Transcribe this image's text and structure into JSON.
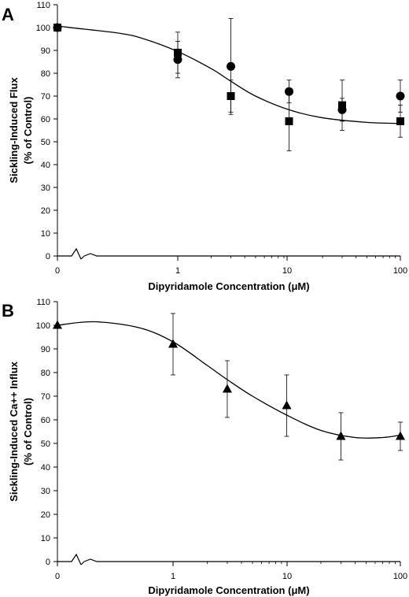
{
  "chart_data": [
    {
      "type": "scatter",
      "panel_label": "A",
      "xlabel": "Dipyridamole Concentration (μM)",
      "ylabel": [
        "Sickling-Induced Flux",
        "(% of Control)"
      ],
      "x_scale": "log-with-zero-break",
      "x_ticks": [
        "0",
        "1",
        "10",
        "100"
      ],
      "y_ticks": [
        "0",
        "10",
        "20",
        "30",
        "40",
        "50",
        "60",
        "70",
        "80",
        "90",
        "100",
        "110"
      ],
      "ylim": [
        0,
        110
      ],
      "grid": false,
      "series": [
        {
          "marker": "circle",
          "points": [
            {
              "x": 0,
              "y": 100,
              "err": 0
            },
            {
              "x": 1,
              "y": 86,
              "err": 8
            },
            {
              "x": 3,
              "y": 83,
              "err": 21
            },
            {
              "x": 10,
              "y": 72,
              "err": 5
            },
            {
              "x": 30,
              "y": 64,
              "err": 5
            },
            {
              "x": 100,
              "y": 70,
              "err": 7
            }
          ]
        },
        {
          "marker": "square",
          "points": [
            {
              "x": 0,
              "y": 100,
              "err": 0
            },
            {
              "x": 1,
              "y": 89,
              "err": 9
            },
            {
              "x": 3,
              "y": 70,
              "err": 7
            },
            {
              "x": 10,
              "y": 59,
              "err": 13
            },
            {
              "x": 30,
              "y": 66,
              "err": 11
            },
            {
              "x": 100,
              "y": 59,
              "err": 7
            }
          ]
        }
      ],
      "fit_curve": [
        {
          "x": 0,
          "y": 101
        },
        {
          "x": 0.1,
          "y": 100.2
        },
        {
          "x": 0.3,
          "y": 97.5
        },
        {
          "x": 0.5,
          "y": 95
        },
        {
          "x": 1,
          "y": 89.5
        },
        {
          "x": 2,
          "y": 82
        },
        {
          "x": 3,
          "y": 76.5
        },
        {
          "x": 5,
          "y": 70
        },
        {
          "x": 10,
          "y": 64
        },
        {
          "x": 20,
          "y": 60.5
        },
        {
          "x": 50,
          "y": 58.5
        },
        {
          "x": 100,
          "y": 58
        }
      ]
    },
    {
      "type": "scatter",
      "panel_label": "B",
      "xlabel": "Dipyridamole Concentration (μM)",
      "ylabel": [
        "Sickling-Induced Ca++ Influx",
        "(% of Control)"
      ],
      "x_scale": "log-with-zero-break",
      "x_ticks": [
        "0",
        "1",
        "10",
        "100"
      ],
      "y_ticks": [
        "0",
        "10",
        "20",
        "30",
        "40",
        "50",
        "60",
        "70",
        "80",
        "90",
        "100",
        "110"
      ],
      "ylim": [
        0,
        110
      ],
      "grid": false,
      "series": [
        {
          "marker": "triangle",
          "points": [
            {
              "x": 0,
              "y": 100,
              "err": 0
            },
            {
              "x": 1,
              "y": 92,
              "err": 13
            },
            {
              "x": 3,
              "y": 73,
              "err": 12
            },
            {
              "x": 10,
              "y": 66,
              "err": 13
            },
            {
              "x": 30,
              "y": 53,
              "err": 10
            },
            {
              "x": 100,
              "y": 53,
              "err": 6
            }
          ]
        }
      ],
      "fit_curve": [
        {
          "x": 0,
          "y": 100
        },
        {
          "x": 0.2,
          "y": 101.5
        },
        {
          "x": 0.5,
          "y": 99
        },
        {
          "x": 1,
          "y": 93
        },
        {
          "x": 2,
          "y": 83
        },
        {
          "x": 3,
          "y": 77
        },
        {
          "x": 5,
          "y": 70
        },
        {
          "x": 10,
          "y": 62
        },
        {
          "x": 20,
          "y": 55.5
        },
        {
          "x": 40,
          "y": 52.5
        },
        {
          "x": 70,
          "y": 52.5
        },
        {
          "x": 100,
          "y": 53.5
        }
      ]
    }
  ]
}
